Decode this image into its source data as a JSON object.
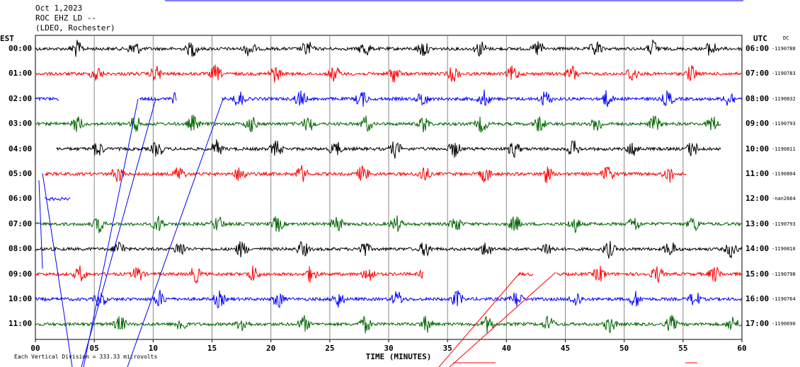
{
  "header": {
    "date": "Oct 1,2023",
    "station": "ROC EHZ LD --",
    "network": "(LDEO, Rochester)"
  },
  "left_zone": "EST",
  "right_zone": "UTC",
  "dc_label": "DC",
  "colors": {
    "cycle": [
      "#000000",
      "#ff0000",
      "#0000ff",
      "#006600"
    ],
    "grid": "#888888",
    "event": "#0000ff",
    "event2": "#ff0000"
  },
  "chart_data": {
    "type": "line",
    "title": "",
    "xlabel": "TIME (MINUTES)",
    "xlim": [
      0,
      60
    ],
    "x_ticks": [
      "00",
      "05",
      "10",
      "15",
      "20",
      "25",
      "30",
      "35",
      "40",
      "45",
      "50",
      "55",
      "60"
    ],
    "grid": true,
    "rows": [
      {
        "est": "00:00",
        "utc": "06:00",
        "dc": "-1190788",
        "color": "black",
        "end_min": 60,
        "start_min": 0
      },
      {
        "est": "01:00",
        "utc": "07:00",
        "dc": "-1190783",
        "color": "red",
        "end_min": 60,
        "start_min": 0
      },
      {
        "est": "02:00",
        "utc": "08:00",
        "dc": "-1190832",
        "color": "blue",
        "end_min": 60,
        "start_min": 0,
        "gaps": [
          [
            2,
            8.8
          ],
          [
            12,
            15.8
          ]
        ]
      },
      {
        "est": "03:00",
        "utc": "09:00",
        "dc": "-1190793",
        "color": "green",
        "end_min": 58.2,
        "start_min": 0
      },
      {
        "est": "04:00",
        "utc": "10:00",
        "dc": "-1190811",
        "color": "black",
        "end_min": 58.2,
        "start_min": 1.8
      },
      {
        "est": "05:00",
        "utc": "11:00",
        "dc": "-1190804",
        "color": "red",
        "end_min": 55.3,
        "start_min": 0.8
      },
      {
        "est": "06:00",
        "utc": "12:00",
        "dc": "-nan2664",
        "color": "blue",
        "end_min": 3,
        "start_min": 0.8
      },
      {
        "est": "07:00",
        "utc": "13:00",
        "dc": "-1190793",
        "color": "green",
        "end_min": 60,
        "start_min": 0
      },
      {
        "est": "08:00",
        "utc": "14:00",
        "dc": "-1190810",
        "color": "black",
        "end_min": 60,
        "start_min": 0
      },
      {
        "est": "09:00",
        "utc": "15:00",
        "dc": "-1190798",
        "color": "red",
        "end_min": 60,
        "start_min": 0,
        "gaps": [
          [
            33,
            41
          ],
          [
            42.3,
            44.2
          ]
        ]
      },
      {
        "est": "10:00",
        "utc": "16:00",
        "dc": "-1190764",
        "color": "blue",
        "end_min": 60,
        "start_min": 0
      },
      {
        "est": "11:00",
        "utc": "17:00",
        "dc": "-1190690",
        "color": "green",
        "end_min": 60,
        "start_min": 0
      }
    ]
  },
  "footer": {
    "scale_note": "Each Vertical Division = 333.33 microvolts"
  }
}
